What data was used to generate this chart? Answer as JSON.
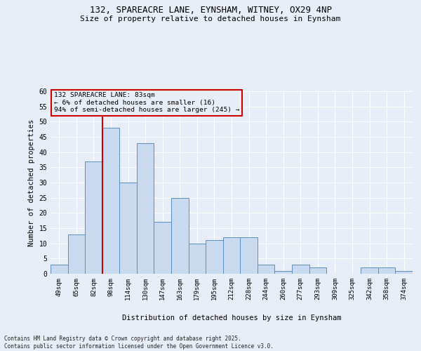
{
  "title_line1": "132, SPAREACRE LANE, EYNSHAM, WITNEY, OX29 4NP",
  "title_line2": "Size of property relative to detached houses in Eynsham",
  "xlabel": "Distribution of detached houses by size in Eynsham",
  "ylabel": "Number of detached properties",
  "footnote": "Contains HM Land Registry data © Crown copyright and database right 2025.\nContains public sector information licensed under the Open Government Licence v3.0.",
  "categories": [
    "49sqm",
    "65sqm",
    "82sqm",
    "98sqm",
    "114sqm",
    "130sqm",
    "147sqm",
    "163sqm",
    "179sqm",
    "195sqm",
    "212sqm",
    "228sqm",
    "244sqm",
    "260sqm",
    "277sqm",
    "293sqm",
    "309sqm",
    "325sqm",
    "342sqm",
    "358sqm",
    "374sqm"
  ],
  "values": [
    3,
    13,
    37,
    48,
    30,
    43,
    17,
    25,
    10,
    11,
    12,
    12,
    3,
    1,
    3,
    2,
    0,
    0,
    2,
    2,
    1
  ],
  "bar_color": "#c9d9f0",
  "bar_edge_color": "#5b8ec4",
  "bg_color": "#e8eef8",
  "grid_color": "#ffffff",
  "vline_x_index": 2,
  "vline_color": "#cc0000",
  "annotation_title": "132 SPAREACRE LANE: 83sqm",
  "annotation_line1": "← 6% of detached houses are smaller (16)",
  "annotation_line2": "94% of semi-detached houses are larger (245) →",
  "annotation_box_color": "#cc0000",
  "ylim": [
    0,
    60
  ],
  "yticks": [
    0,
    5,
    10,
    15,
    20,
    25,
    30,
    35,
    40,
    45,
    50,
    55,
    60
  ]
}
